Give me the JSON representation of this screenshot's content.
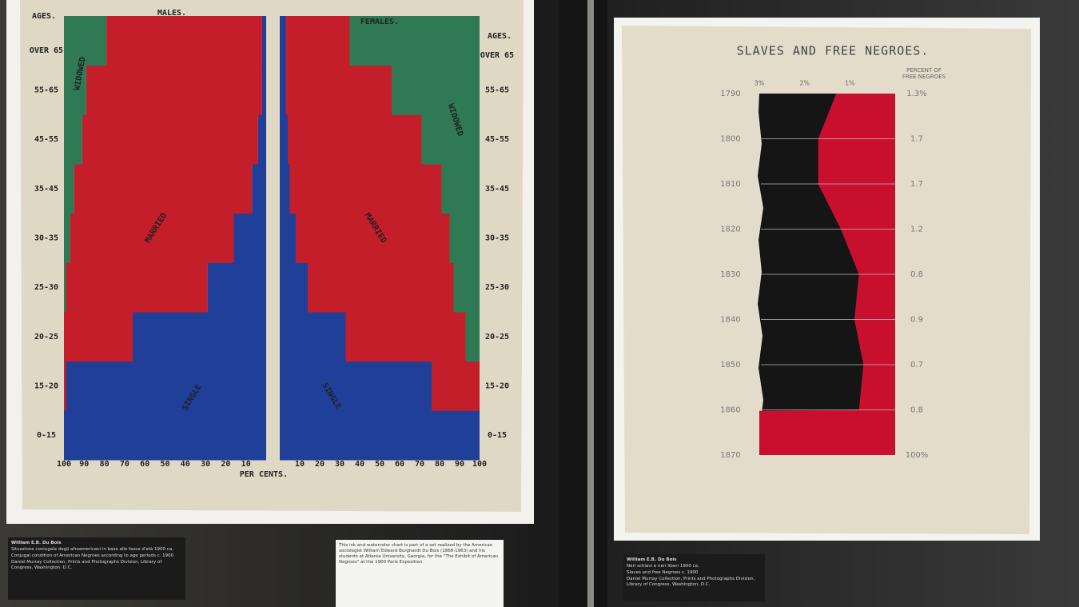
{
  "chart_data": [
    {
      "type": "pyramid",
      "y_label": "AGES.",
      "categories": [
        "0-15",
        "15-20",
        "20-25",
        "25-30",
        "30-35",
        "35-45",
        "45-55",
        "55-65",
        "OVER 65"
      ],
      "xlabel": "PER CENTS.",
      "xlim": [
        0,
        100
      ],
      "xticks": [
        10,
        20,
        30,
        40,
        50,
        60,
        70,
        80,
        90,
        100
      ],
      "groups": [
        {
          "name": "MALES.",
          "series": [
            {
              "name": "SINGLE",
              "color": "#1f3f99",
              "values": [
                100,
                99,
                66,
                29,
                16,
                7,
                4,
                2,
                2
              ]
            },
            {
              "name": "MARRIED",
              "color": "#c41e2a",
              "values": [
                0,
                1,
                34,
                70,
                81,
                88,
                87,
                87,
                77
              ]
            },
            {
              "name": "WIDOWED",
              "color": "#2f7a55",
              "values": [
                0,
                0,
                0,
                1,
                3,
                5,
                9,
                11,
                21
              ]
            }
          ]
        },
        {
          "name": "FEMALES.",
          "series": [
            {
              "name": "SINGLE",
              "color": "#1f3f99",
              "values": [
                100,
                76,
                33,
                14,
                8,
                5,
                4,
                3,
                3
              ]
            },
            {
              "name": "MARRIED",
              "color": "#c41e2a",
              "values": [
                0,
                24,
                60,
                73,
                77,
                76,
                67,
                53,
                32
              ]
            },
            {
              "name": "WIDOWED",
              "color": "#2f7a55",
              "values": [
                0,
                0,
                7,
                13,
                15,
                19,
                29,
                44,
                65
              ]
            }
          ]
        }
      ]
    },
    {
      "type": "area",
      "title": "SLAVES AND FREE NEGROES.",
      "x": [
        1790,
        1800,
        1810,
        1820,
        1830,
        1840,
        1850,
        1860,
        1870
      ],
      "xlim": [
        1790,
        1870
      ],
      "ylim": [
        3,
        0
      ],
      "yticks": [
        {
          "value": 3,
          "label": "3%"
        },
        {
          "value": 2,
          "label": "2%"
        },
        {
          "value": 1,
          "label": "1%"
        }
      ],
      "series": [
        {
          "name": "PERCENT OF FREE NEGROES",
          "color": "#c8102e",
          "values": [
            1.3,
            1.7,
            1.7,
            1.2,
            0.8,
            0.9,
            0.7,
            0.8,
            100
          ],
          "value_labels": [
            "1.3%",
            "1.7",
            "1.7",
            "1.2",
            "0.8",
            "0.9",
            "0.7",
            "0.8",
            "100%"
          ]
        }
      ]
    }
  ],
  "placards": {
    "left": [
      "William E.B. Du Bois",
      "Situazione coniugale degli afroamericani in base alle fasce d'età 1900 ca.",
      "Conjugal condition of American Negroes according to age periods c. 1900",
      "Daniel Murray Collection, Prints and Photographs Division, Library of Congress, Washington, D.C."
    ],
    "middle": [
      "This ink and watercolor chart is part of a set realized by the American sociologist William Edward Burghardt Du Bois (1868-1963) and his students at Atlanta University, Georgia, for the \"The Exhibit of American Negroes\" at the 1900 Paris Exposition"
    ],
    "right": [
      "William E.B. Du Bois",
      "Neri schiavi e neri liberi 1900 ca.",
      "Slaves and free Negroes c. 1900",
      "Daniel Murray Collection, Prints and Photographs Division, Library of Congress, Washington, D.C."
    ]
  }
}
